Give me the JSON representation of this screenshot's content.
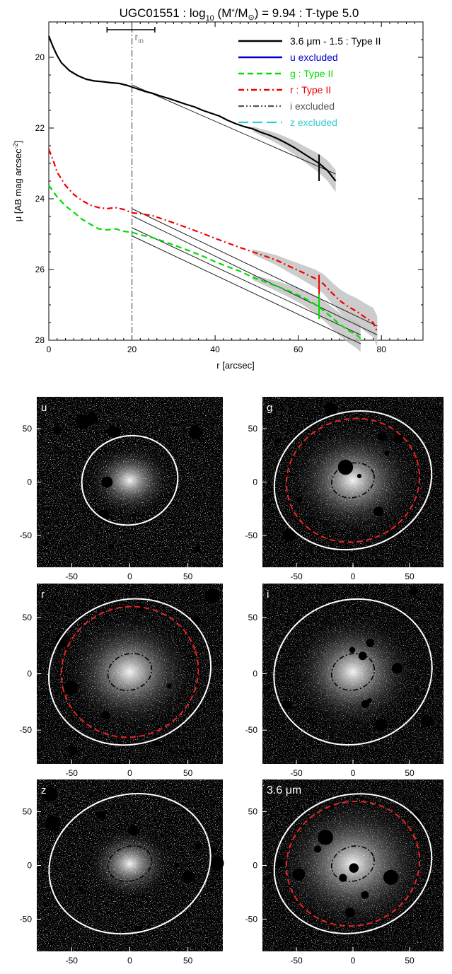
{
  "chart_data": [
    {
      "type": "line",
      "title": "UGC01551 : log₁₀ (M*/M⊙) = 9.94 : T-type 5.0",
      "title_parts": {
        "galaxy": "UGC01551 : log",
        "sub10": "10",
        "mass_open": " (M",
        "mass_star": "*",
        "mass_mid": "/M",
        "sun": "⊙",
        "tail": ") = 9.94 : T-type 5.0"
      },
      "xlabel": "r [arcsec]",
      "ylabel": "μ [AB mag arcsec⁻²]",
      "ylabel_parts": {
        "main": "μ [AB mag arcsec",
        "sup": "-2",
        "end": "]"
      },
      "xlim": [
        0,
        90
      ],
      "ylim": [
        28,
        19
      ],
      "y_inverted": true,
      "xticks": [
        0,
        20,
        40,
        60,
        80
      ],
      "yticks": [
        20,
        22,
        24,
        26,
        28
      ],
      "r_in": {
        "label": "r",
        "sub": "in",
        "value": 20,
        "err_low": 14,
        "err_high": 25.5
      },
      "legend_position": "top-right",
      "series": [
        {
          "name": "3.6 μm - 1.5 : Type II",
          "color": "#000000",
          "dash": "solid",
          "x": [
            0,
            1,
            2,
            3,
            5,
            7,
            9,
            11,
            13,
            15,
            17,
            19,
            21,
            23,
            25,
            27,
            29,
            31,
            33,
            35,
            37,
            39,
            41,
            43,
            45,
            47,
            49,
            51,
            53,
            55,
            57,
            59,
            61,
            63,
            65,
            67,
            69
          ],
          "y": [
            19.4,
            19.7,
            19.95,
            20.15,
            20.38,
            20.52,
            20.62,
            20.67,
            20.69,
            20.72,
            20.74,
            20.8,
            20.88,
            20.96,
            21.02,
            21.1,
            21.17,
            21.25,
            21.33,
            21.4,
            21.5,
            21.58,
            21.66,
            21.78,
            21.88,
            21.96,
            22.02,
            22.12,
            22.2,
            22.3,
            22.42,
            22.55,
            22.7,
            22.85,
            23.0,
            23.2,
            23.5
          ]
        },
        {
          "name": "u excluded",
          "color": "#0000cc",
          "dash": "solid"
        },
        {
          "name": "g : Type II",
          "color": "#00dd00",
          "dash": "dash",
          "x": [
            0,
            2,
            4,
            6,
            8,
            10,
            12,
            14,
            16,
            18,
            20,
            22,
            25,
            28,
            31,
            34,
            37,
            40,
            43,
            46,
            49,
            52,
            55,
            58,
            61,
            64,
            66,
            68,
            70,
            72,
            74,
            75
          ],
          "y": [
            23.62,
            23.95,
            24.2,
            24.38,
            24.58,
            24.72,
            24.85,
            24.88,
            24.85,
            24.92,
            24.95,
            25.02,
            25.1,
            25.22,
            25.35,
            25.48,
            25.62,
            25.78,
            25.92,
            26.05,
            26.22,
            26.35,
            26.48,
            26.62,
            26.78,
            26.98,
            27.15,
            27.35,
            27.55,
            27.72,
            27.85,
            27.95
          ]
        },
        {
          "name": "r : Type II",
          "color": "#ee0000",
          "dash": "dashdot",
          "x": [
            0,
            1,
            2,
            4,
            6,
            8,
            10,
            12,
            14,
            16,
            18,
            20,
            22,
            25,
            28,
            31,
            34,
            37,
            40,
            43,
            46,
            49,
            52,
            55,
            58,
            61,
            64,
            66,
            68,
            70,
            72,
            74,
            76,
            78,
            79
          ],
          "y": [
            22.6,
            22.9,
            23.25,
            23.62,
            23.88,
            24.05,
            24.18,
            24.25,
            24.28,
            24.25,
            24.3,
            24.4,
            24.42,
            24.48,
            24.6,
            24.72,
            24.85,
            24.98,
            25.12,
            25.25,
            25.38,
            25.5,
            25.62,
            25.75,
            25.92,
            26.08,
            26.25,
            26.4,
            26.65,
            26.88,
            27.05,
            27.18,
            27.35,
            27.5,
            27.75
          ]
        },
        {
          "name": "i excluded",
          "color": "#555555",
          "dash": "dashdotdot"
        },
        {
          "name": "z excluded",
          "color": "#33cccc",
          "dash": "longdash"
        }
      ],
      "fits": [
        {
          "band": "3.6",
          "x": [
            20,
            69
          ],
          "y": [
            20.78,
            23.3
          ],
          "break_r": 65
        },
        {
          "band": "r",
          "x": [
            20,
            79
          ],
          "y": [
            24.28,
            27.6
          ],
          "break_r": 65
        },
        {
          "band": "r",
          "x": [
            20,
            79
          ],
          "y": [
            24.48,
            27.85
          ]
        },
        {
          "band": "g",
          "x": [
            20,
            75
          ],
          "y": [
            24.82,
            27.85
          ],
          "break_r": 65
        },
        {
          "band": "g",
          "x": [
            20,
            75
          ],
          "y": [
            25.05,
            28.1
          ]
        }
      ],
      "break_markers": [
        {
          "x": 65,
          "y_low": 22.75,
          "y_high": 23.5,
          "color": "#000000"
        },
        {
          "x": 65,
          "y_low": 26.15,
          "y_high": 26.95,
          "color": "#ee0000"
        },
        {
          "x": 65,
          "y_low": 26.7,
          "y_high": 27.4,
          "color": "#00dd00"
        }
      ]
    },
    {
      "type": "image-grid",
      "xticks": [
        -50,
        0,
        50
      ],
      "yticks": [
        50,
        0,
        -50
      ],
      "xlim": [
        -80,
        80
      ],
      "ylim": [
        -80,
        80
      ],
      "panels": [
        {
          "label": "u",
          "outer_ellipse": true,
          "break_ellipse": false,
          "inner_ellipse": false,
          "brightness": "low"
        },
        {
          "label": "g",
          "outer_ellipse": true,
          "break_ellipse": true,
          "inner_ellipse": true,
          "brightness": "medium"
        },
        {
          "label": "r",
          "outer_ellipse": true,
          "break_ellipse": true,
          "inner_ellipse": true,
          "brightness": "medium"
        },
        {
          "label": "i",
          "outer_ellipse": true,
          "break_ellipse": false,
          "inner_ellipse": true,
          "brightness": "medium"
        },
        {
          "label": "z",
          "outer_ellipse": true,
          "break_ellipse": false,
          "inner_ellipse": true,
          "brightness": "low"
        },
        {
          "label": "3.6 μm",
          "outer_ellipse": true,
          "break_ellipse": true,
          "inner_ellipse": true,
          "brightness": "high"
        }
      ]
    }
  ],
  "colors": {
    "outer_ellipse": "#ffffff",
    "break_ellipse": "#ee2222",
    "inner_ellipse": "#000000",
    "background": "#ffffff"
  }
}
